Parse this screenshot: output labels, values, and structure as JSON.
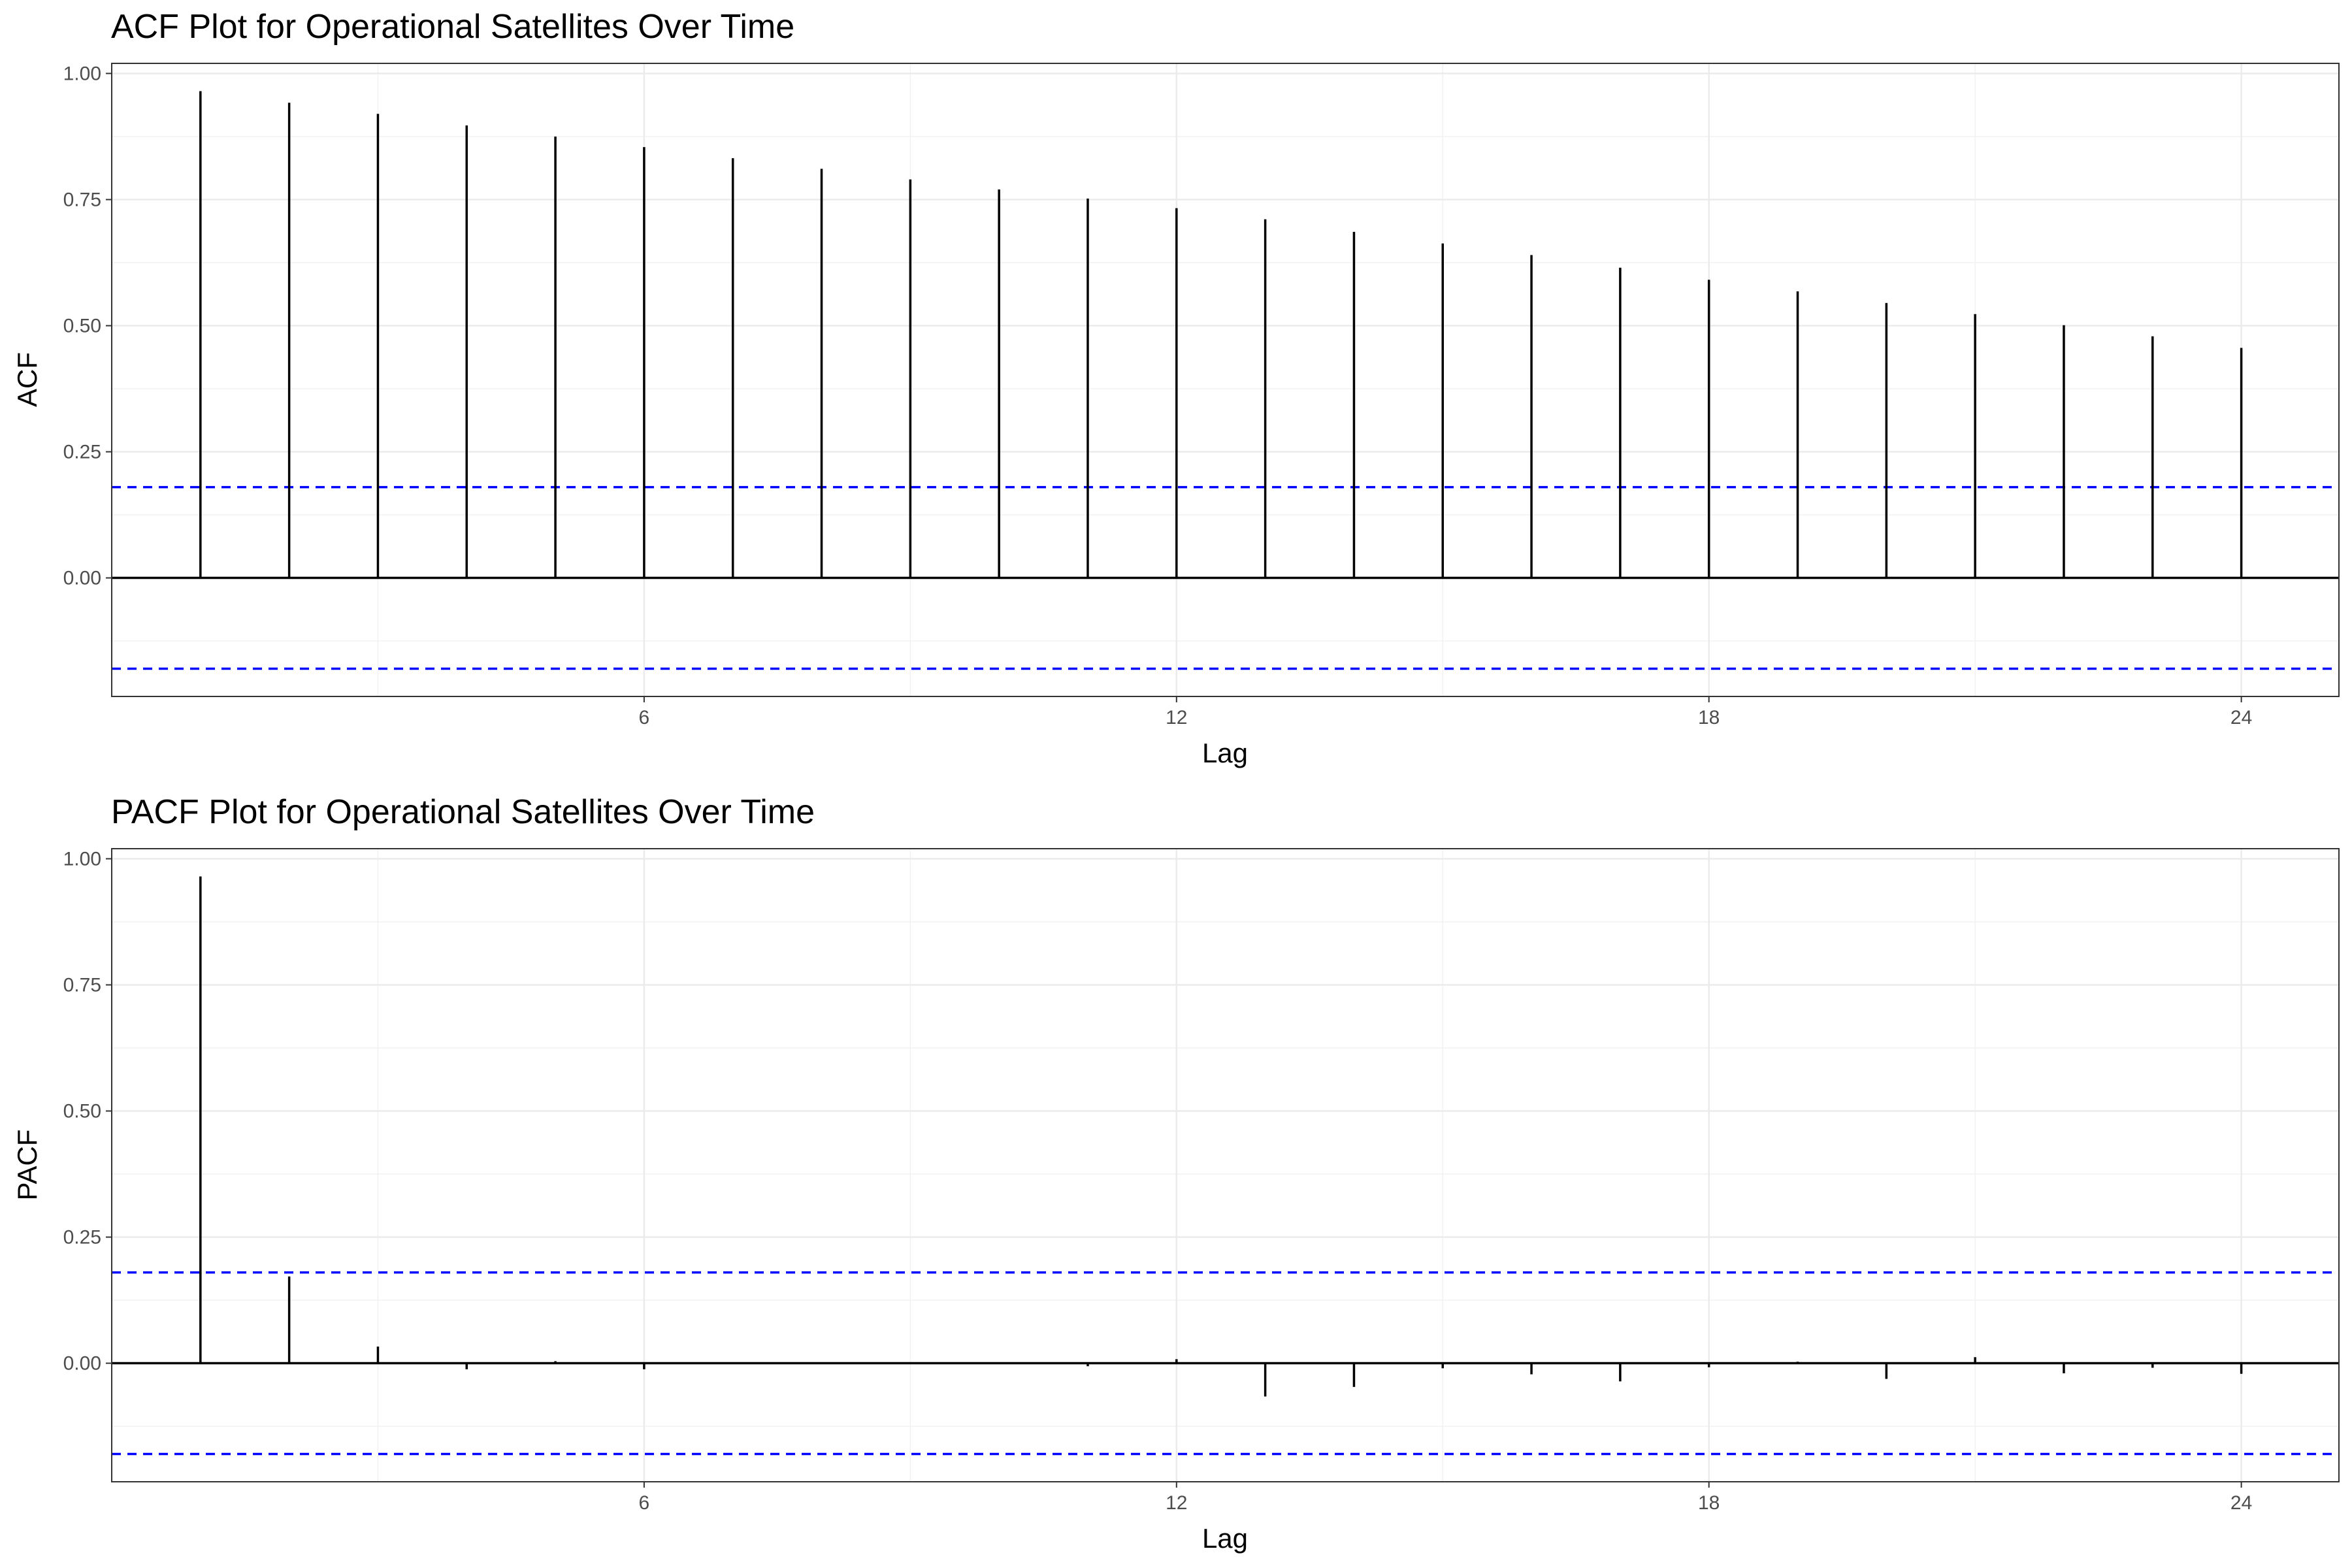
{
  "chart_data": [
    {
      "type": "bar",
      "title": "ACF Plot for Operational Satellites Over Time",
      "xlabel": "Lag",
      "ylabel": "ACF",
      "x_ticks": [
        6,
        12,
        18,
        24
      ],
      "y_ticks": [
        "0.00",
        "0.25",
        "0.50",
        "0.75",
        "1.00"
      ],
      "xlim": [
        0,
        25.1
      ],
      "ylim": [
        -0.235,
        1.02
      ],
      "grid": true,
      "confidence_band": 0.18,
      "confidence_color": "#0000ff",
      "lags": [
        1,
        2,
        3,
        4,
        5,
        6,
        7,
        8,
        9,
        10,
        11,
        12,
        13,
        14,
        15,
        16,
        17,
        18,
        19,
        20,
        21,
        22,
        23,
        24
      ],
      "values": [
        0.965,
        0.942,
        0.92,
        0.897,
        0.875,
        0.854,
        0.832,
        0.811,
        0.79,
        0.77,
        0.752,
        0.733,
        0.711,
        0.686,
        0.663,
        0.64,
        0.615,
        0.591,
        0.568,
        0.545,
        0.523,
        0.501,
        0.479,
        0.456
      ]
    },
    {
      "type": "bar",
      "title": "PACF Plot for Operational Satellites Over Time",
      "xlabel": "Lag",
      "ylabel": "PACF",
      "x_ticks": [
        6,
        12,
        18,
        24
      ],
      "y_ticks": [
        "0.00",
        "0.25",
        "0.50",
        "0.75",
        "1.00"
      ],
      "xlim": [
        0,
        25.1
      ],
      "ylim": [
        -0.235,
        1.02
      ],
      "grid": true,
      "confidence_band": 0.18,
      "confidence_color": "#0000ff",
      "lags": [
        1,
        2,
        3,
        4,
        5,
        6,
        7,
        8,
        9,
        10,
        11,
        12,
        13,
        14,
        15,
        16,
        17,
        18,
        19,
        20,
        21,
        22,
        23,
        24
      ],
      "values": [
        0.965,
        0.172,
        0.033,
        -0.012,
        0.004,
        -0.012,
        0.0,
        0.0,
        0.0,
        0.0,
        -0.006,
        0.008,
        -0.066,
        -0.047,
        -0.01,
        -0.022,
        -0.036,
        -0.008,
        0.003,
        -0.031,
        0.012,
        -0.02,
        -0.009,
        -0.021
      ]
    }
  ]
}
